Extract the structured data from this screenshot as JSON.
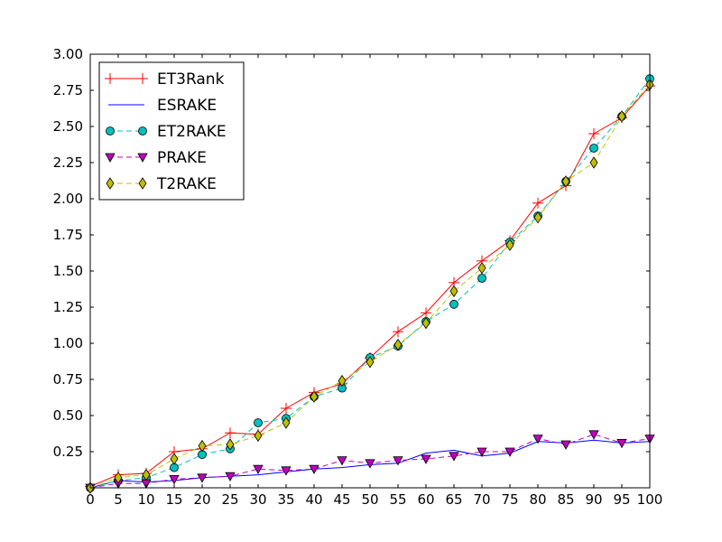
{
  "chart_data": {
    "type": "line",
    "x": [
      0,
      5,
      10,
      15,
      20,
      25,
      30,
      35,
      40,
      45,
      50,
      55,
      60,
      65,
      70,
      75,
      80,
      85,
      90,
      95,
      100
    ],
    "xlim": [
      0,
      100
    ],
    "ylim": [
      0,
      3.0
    ],
    "x_ticks": [
      "0",
      "5",
      "10",
      "15",
      "20",
      "25",
      "30",
      "35",
      "40",
      "45",
      "50",
      "55",
      "60",
      "65",
      "70",
      "75",
      "80",
      "85",
      "90",
      "95",
      "100"
    ],
    "y_ticks": [
      "0.25",
      "0.50",
      "0.75",
      "1.00",
      "1.25",
      "1.50",
      "1.75",
      "2.00",
      "2.25",
      "2.50",
      "2.75",
      "3.00"
    ],
    "grid": false,
    "legend_position": "top-left",
    "series": [
      {
        "name": "ET3Rank",
        "color": "#ff0000",
        "line": "solid",
        "marker": "plus",
        "values": [
          0.01,
          0.09,
          0.1,
          0.25,
          0.27,
          0.38,
          0.37,
          0.55,
          0.66,
          0.72,
          0.9,
          1.08,
          1.21,
          1.42,
          1.57,
          1.71,
          1.97,
          2.09,
          2.45,
          2.56,
          2.78
        ]
      },
      {
        "name": "ESRAKE",
        "color": "#0000ff",
        "line": "solid",
        "marker": "none",
        "values": [
          0.0,
          0.05,
          0.04,
          0.05,
          0.07,
          0.08,
          0.09,
          0.11,
          0.13,
          0.14,
          0.16,
          0.17,
          0.24,
          0.26,
          0.22,
          0.24,
          0.32,
          0.31,
          0.33,
          0.31,
          0.32
        ]
      },
      {
        "name": "ET2RAKE",
        "color": "#00bfbf",
        "line": "dashed",
        "marker": "circle",
        "values": [
          0.0,
          0.05,
          0.07,
          0.14,
          0.23,
          0.27,
          0.45,
          0.48,
          0.63,
          0.69,
          0.9,
          0.98,
          1.15,
          1.27,
          1.45,
          1.7,
          1.88,
          2.12,
          2.35,
          2.57,
          2.83
        ]
      },
      {
        "name": "PRAKE",
        "color": "#bf00bf",
        "line": "dashed",
        "marker": "triangle-down",
        "values": [
          0.0,
          0.03,
          0.03,
          0.06,
          0.07,
          0.08,
          0.13,
          0.12,
          0.13,
          0.19,
          0.17,
          0.19,
          0.2,
          0.22,
          0.25,
          0.25,
          0.34,
          0.3,
          0.37,
          0.31,
          0.34
        ]
      },
      {
        "name": "T2RAKE",
        "color": "#bfbf00",
        "line": "dashed",
        "marker": "diamond",
        "values": [
          0.0,
          0.07,
          0.09,
          0.2,
          0.29,
          0.3,
          0.36,
          0.45,
          0.63,
          0.74,
          0.87,
          0.99,
          1.14,
          1.36,
          1.52,
          1.68,
          1.87,
          2.12,
          2.25,
          2.57,
          2.79
        ]
      }
    ]
  }
}
